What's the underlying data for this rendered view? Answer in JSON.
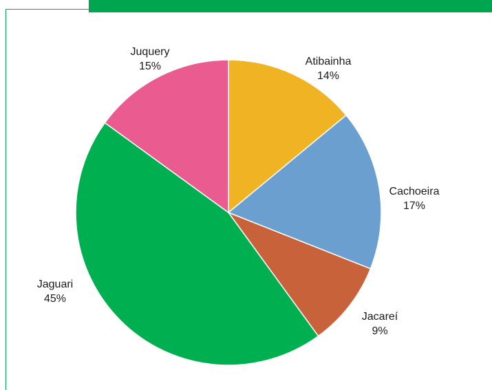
{
  "chart_data": {
    "type": "pie",
    "title": "",
    "series": [
      {
        "categories": [
          "Atibainha",
          "Cachoeira",
          "Jacareí",
          "Jaguari",
          "Juquery"
        ],
        "values": [
          14,
          17,
          9,
          45,
          15
        ],
        "value_labels": [
          "14%",
          "17%",
          "9%",
          "45%",
          "15%"
        ],
        "colors": [
          "#f0b323",
          "#6a9fd0",
          "#c8623b",
          "#00b050",
          "#ea5b8f"
        ]
      }
    ],
    "start_angle": "12 o'clock",
    "direction": "clockwise",
    "legend": "none (labels placed outside slices)"
  },
  "frame": {
    "accent_color": "#00a550"
  }
}
